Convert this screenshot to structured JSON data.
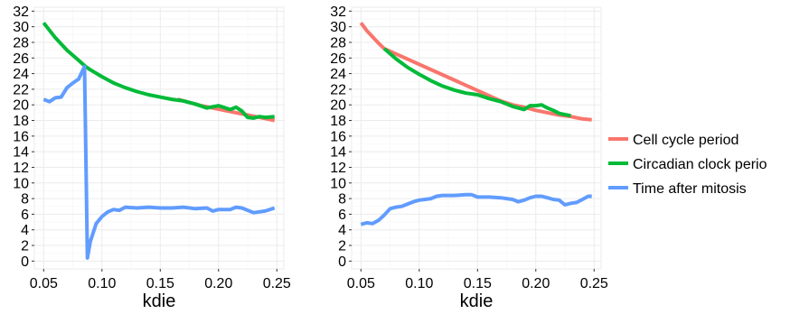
{
  "colors": {
    "cell_cycle": "#F8766D",
    "circadian": "#00BA38",
    "time_after_mitosis": "#619CFF",
    "panel_bg": "#ffffff",
    "grid": "#EBEBEB",
    "axis_text": "#000000"
  },
  "legend": {
    "items": [
      {
        "label": "Cell cycle period",
        "color": "#F8766D"
      },
      {
        "label": "Circadian clock perio",
        "color": "#00BA38"
      },
      {
        "label": "Time after mitosis",
        "color": "#619CFF"
      }
    ]
  },
  "chart_data": [
    {
      "type": "line",
      "xlabel": "kdie",
      "ylabel": "",
      "xlim": [
        0.042,
        0.256
      ],
      "ylim": [
        -1,
        32.5
      ],
      "xticks": [
        0.05,
        0.1,
        0.15,
        0.2,
        0.25
      ],
      "xtick_labels": [
        "0.05",
        "0.10",
        "0.15",
        "0.20",
        "0.25"
      ],
      "yticks": [
        0,
        2,
        4,
        6,
        8,
        10,
        12,
        14,
        16,
        18,
        20,
        22,
        24,
        26,
        28,
        30,
        32
      ],
      "ytick_labels": [
        "0",
        "2",
        "4",
        "6",
        "8",
        "10",
        "12",
        "14",
        "16",
        "18",
        "20",
        "22",
        "24",
        "26",
        "28",
        "30",
        "32"
      ],
      "grid": true,
      "series": [
        {
          "name": "Cell cycle period",
          "color": "#F8766D",
          "points": [
            [
              0.165,
              20.7
            ],
            [
              0.175,
              20.3
            ],
            [
              0.185,
              19.9
            ],
            [
              0.195,
              19.6
            ],
            [
              0.205,
              19.3
            ],
            [
              0.215,
              19.0
            ],
            [
              0.225,
              18.7
            ],
            [
              0.235,
              18.4
            ],
            [
              0.248,
              18.0
            ]
          ]
        },
        {
          "name": "Circadian clock perio",
          "color": "#00BA38",
          "points": [
            [
              0.05,
              30.5
            ],
            [
              0.06,
              28.6
            ],
            [
              0.07,
              27.0
            ],
            [
              0.08,
              25.7
            ],
            [
              0.086,
              24.9
            ],
            [
              0.09,
              24.5
            ],
            [
              0.1,
              23.6
            ],
            [
              0.11,
              22.8
            ],
            [
              0.12,
              22.2
            ],
            [
              0.13,
              21.7
            ],
            [
              0.14,
              21.3
            ],
            [
              0.15,
              21.0
            ],
            [
              0.16,
              20.7
            ],
            [
              0.17,
              20.5
            ],
            [
              0.18,
              20.1
            ],
            [
              0.19,
              19.6
            ],
            [
              0.2,
              19.9
            ],
            [
              0.21,
              19.4
            ],
            [
              0.215,
              19.7
            ],
            [
              0.22,
              19.2
            ],
            [
              0.225,
              18.4
            ],
            [
              0.23,
              18.3
            ],
            [
              0.235,
              18.5
            ],
            [
              0.24,
              18.4
            ],
            [
              0.248,
              18.5
            ]
          ]
        },
        {
          "name": "Time after mitosis",
          "color": "#619CFF",
          "points": [
            [
              0.05,
              20.7
            ],
            [
              0.055,
              20.4
            ],
            [
              0.06,
              20.9
            ],
            [
              0.065,
              21.0
            ],
            [
              0.07,
              22.2
            ],
            [
              0.075,
              22.8
            ],
            [
              0.08,
              23.3
            ],
            [
              0.085,
              24.9
            ],
            [
              0.0875,
              0.4
            ],
            [
              0.09,
              2.5
            ],
            [
              0.095,
              4.8
            ],
            [
              0.1,
              5.7
            ],
            [
              0.105,
              6.3
            ],
            [
              0.11,
              6.6
            ],
            [
              0.115,
              6.5
            ],
            [
              0.12,
              6.9
            ],
            [
              0.13,
              6.8
            ],
            [
              0.14,
              6.9
            ],
            [
              0.15,
              6.8
            ],
            [
              0.16,
              6.8
            ],
            [
              0.17,
              6.9
            ],
            [
              0.18,
              6.7
            ],
            [
              0.19,
              6.8
            ],
            [
              0.195,
              6.4
            ],
            [
              0.2,
              6.6
            ],
            [
              0.21,
              6.6
            ],
            [
              0.215,
              6.9
            ],
            [
              0.22,
              6.8
            ],
            [
              0.23,
              6.2
            ],
            [
              0.24,
              6.4
            ],
            [
              0.248,
              6.8
            ]
          ]
        }
      ]
    },
    {
      "type": "line",
      "xlabel": "kdie",
      "ylabel": "",
      "xlim": [
        0.042,
        0.256
      ],
      "ylim": [
        -1,
        32.5
      ],
      "xticks": [
        0.05,
        0.1,
        0.15,
        0.2,
        0.25
      ],
      "xtick_labels": [
        "0.05",
        "0.10",
        "0.15",
        "0.20",
        "0.25"
      ],
      "yticks": [
        0,
        2,
        4,
        6,
        8,
        10,
        12,
        14,
        16,
        18,
        20,
        22,
        24,
        26,
        28,
        30,
        32
      ],
      "ytick_labels": [
        "0",
        "2",
        "4",
        "6",
        "8",
        "10",
        "12",
        "14",
        "16",
        "18",
        "20",
        "22",
        "24",
        "26",
        "28",
        "30",
        "32"
      ],
      "grid": true,
      "series": [
        {
          "name": "Cell cycle period",
          "color": "#F8766D",
          "points": [
            [
              0.05,
              30.5
            ],
            [
              0.055,
              29.5
            ],
            [
              0.06,
              28.7
            ],
            [
              0.065,
              27.9
            ],
            [
              0.07,
              27.2
            ],
            [
              0.17,
              20.5
            ],
            [
              0.18,
              20.0
            ],
            [
              0.19,
              19.7
            ],
            [
              0.2,
              19.3
            ],
            [
              0.21,
              19.0
            ],
            [
              0.22,
              18.7
            ],
            [
              0.23,
              18.5
            ],
            [
              0.24,
              18.2
            ],
            [
              0.248,
              18.1
            ]
          ]
        },
        {
          "name": "Circadian clock perio",
          "color": "#00BA38",
          "points": [
            [
              0.07,
              27.2
            ],
            [
              0.08,
              25.9
            ],
            [
              0.09,
              24.8
            ],
            [
              0.1,
              23.9
            ],
            [
              0.11,
              23.1
            ],
            [
              0.12,
              22.4
            ],
            [
              0.13,
              21.9
            ],
            [
              0.14,
              21.5
            ],
            [
              0.15,
              21.3
            ],
            [
              0.16,
              20.8
            ],
            [
              0.17,
              20.4
            ],
            [
              0.18,
              19.8
            ],
            [
              0.19,
              19.4
            ],
            [
              0.195,
              19.9
            ],
            [
              0.2,
              19.9
            ],
            [
              0.205,
              20.0
            ],
            [
              0.21,
              19.6
            ],
            [
              0.215,
              19.3
            ],
            [
              0.22,
              18.9
            ],
            [
              0.23,
              18.6
            ]
          ]
        },
        {
          "name": "Time after mitosis",
          "color": "#619CFF",
          "points": [
            [
              0.05,
              4.7
            ],
            [
              0.055,
              4.9
            ],
            [
              0.06,
              4.8
            ],
            [
              0.065,
              5.2
            ],
            [
              0.07,
              5.9
            ],
            [
              0.075,
              6.7
            ],
            [
              0.08,
              6.9
            ],
            [
              0.085,
              7.0
            ],
            [
              0.09,
              7.3
            ],
            [
              0.095,
              7.6
            ],
            [
              0.1,
              7.8
            ],
            [
              0.105,
              7.9
            ],
            [
              0.11,
              8.0
            ],
            [
              0.115,
              8.3
            ],
            [
              0.12,
              8.4
            ],
            [
              0.13,
              8.4
            ],
            [
              0.14,
              8.5
            ],
            [
              0.145,
              8.5
            ],
            [
              0.15,
              8.2
            ],
            [
              0.16,
              8.2
            ],
            [
              0.17,
              8.1
            ],
            [
              0.175,
              8.0
            ],
            [
              0.18,
              7.9
            ],
            [
              0.185,
              7.6
            ],
            [
              0.19,
              7.8
            ],
            [
              0.195,
              8.1
            ],
            [
              0.2,
              8.3
            ],
            [
              0.205,
              8.3
            ],
            [
              0.21,
              8.1
            ],
            [
              0.215,
              7.9
            ],
            [
              0.22,
              7.8
            ],
            [
              0.225,
              7.2
            ],
            [
              0.23,
              7.4
            ],
            [
              0.235,
              7.5
            ],
            [
              0.24,
              7.9
            ],
            [
              0.245,
              8.3
            ],
            [
              0.248,
              8.3
            ]
          ]
        }
      ]
    }
  ]
}
